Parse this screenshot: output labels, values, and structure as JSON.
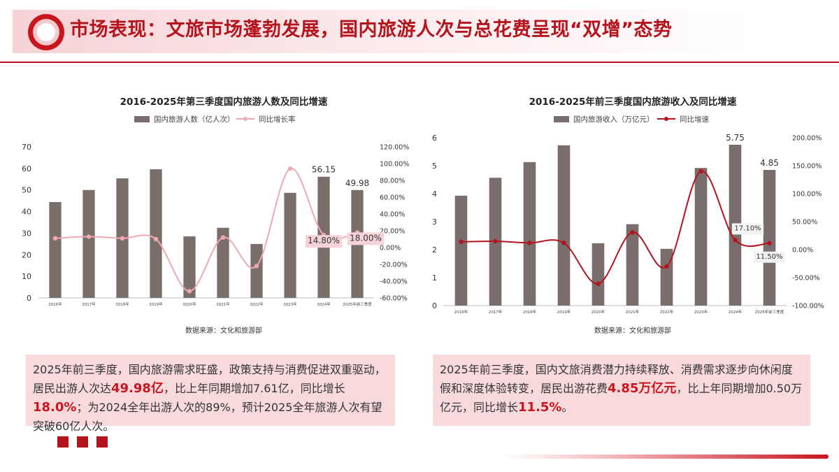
{
  "header": {
    "title": "市场表现：文旅市场蓬勃发展，国内旅游人次与总花费呈现“双增”态势"
  },
  "colors": {
    "accent": "#b4141e",
    "bar": "#7a6e6c",
    "line_left": "#f1a8b2",
    "line_right": "#b4141e",
    "box": "#f8dadd"
  },
  "chart_data": [
    {
      "type": "bar",
      "title": "2016-2025年第三季度国内旅游人数及同比增速",
      "legend_position": "top",
      "source": "数据来源：文化和旅游部",
      "categories": [
        "2016年",
        "2017年",
        "2018年",
        "2019年",
        "2020年",
        "2021年",
        "2022年",
        "2023年",
        "2024年",
        "2025年前三季度"
      ],
      "series": [
        {
          "name": "国内旅游人数（亿人次）",
          "type": "bar",
          "axis": "left",
          "values": [
            44.4,
            50.0,
            55.4,
            59.6,
            28.5,
            32.5,
            25.0,
            48.7,
            56.15,
            49.98
          ]
        },
        {
          "name": "同比增长率",
          "type": "line",
          "axis": "right",
          "smooth": true,
          "values": [
            11.0,
            13.0,
            11.0,
            10.0,
            -52.0,
            12.0,
            -22.0,
            94.0,
            14.8,
            18.0
          ]
        }
      ],
      "bar_labels": [
        "",
        "",
        "",
        "",
        "",
        "",
        "",
        "",
        "56.15",
        "49.98"
      ],
      "line_labels": [
        "",
        "",
        "",
        "",
        "",
        "",
        "",
        "",
        "14.80%",
        "18.00%"
      ],
      "ylim_left": [
        0,
        70
      ],
      "yticks_left": [
        "0",
        "10",
        "20",
        "30",
        "40",
        "50",
        "60",
        "70"
      ],
      "ylim_right": [
        -60,
        120
      ],
      "yticks_right": [
        "-60.00%",
        "-40.00%",
        "-20.00%",
        "0.00%",
        "20.00%",
        "40.00%",
        "60.00%",
        "80.00%",
        "100.00%",
        "120.00%"
      ]
    },
    {
      "type": "bar",
      "title": "2016-2025年前三季度国内旅游收入及同比增速",
      "legend_position": "top",
      "source": "数据来源：文化和旅游部",
      "categories": [
        "2016年",
        "2017年",
        "2018年",
        "2019年",
        "2020年",
        "2021年",
        "2022年",
        "2023年",
        "2024年",
        "2025年前三季度"
      ],
      "series": [
        {
          "name": "国内旅游收入（万亿元）",
          "type": "bar",
          "axis": "left",
          "values": [
            3.93,
            4.57,
            5.13,
            5.73,
            2.23,
            2.91,
            2.03,
            4.92,
            5.75,
            4.85
          ]
        },
        {
          "name": "同比增速",
          "type": "line",
          "axis": "right",
          "smooth": true,
          "markers": true,
          "values": [
            14.0,
            15.0,
            12.0,
            12.0,
            -61.0,
            31.0,
            -30.0,
            140.0,
            17.1,
            11.5
          ]
        }
      ],
      "bar_labels": [
        "",
        "",
        "",
        "",
        "",
        "",
        "",
        "",
        "5.75",
        "4.85"
      ],
      "line_labels": [
        "",
        "",
        "",
        "",
        "",
        "",
        "",
        "",
        "17.10%",
        "11.50%"
      ],
      "ylim_left": [
        0,
        6
      ],
      "yticks_left": [
        "0",
        "1",
        "2",
        "3",
        "4",
        "5",
        "6"
      ],
      "ylim_right": [
        -100,
        200
      ],
      "yticks_right": [
        "-100.00%",
        "-50.00%",
        "0.00%",
        "50.00%",
        "100.00%",
        "150.00%",
        "200.00%"
      ]
    }
  ],
  "desc_left": {
    "p1": "2025年前三季度，国内旅游需求旺盛，政策支持与消费促进双重驱动，居民出游人次达",
    "h1": "49.98亿",
    "p2": "，比上年同期增加7.61亿，同比增长",
    "h2": "18.0%",
    "p3": "；为2024全年出游人次的89%，预计2025全年旅游人次有望突破60亿人次。"
  },
  "desc_right": {
    "p1": "2025年前三季度，国内文旅消费潜力持续释放、消费需求逐步向休闲度假和深度体验转变，居民出游花费",
    "h1": "4.85万亿元",
    "p2": "，比上年同期增加0.50万亿元，同比增长",
    "h2": "11.5%",
    "p3": "。"
  }
}
